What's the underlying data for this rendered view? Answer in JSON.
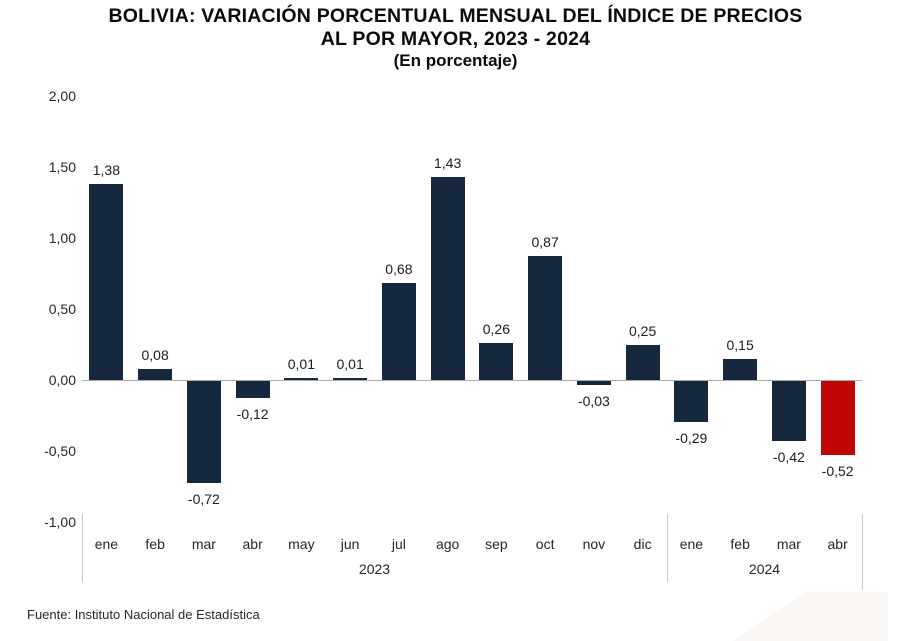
{
  "title": {
    "line1": "BOLIVIA: VARIACIÓN PORCENTUAL MENSUAL DEL ÍNDICE DE PRECIOS",
    "line2": "AL POR MAYOR, 2023 - 2024",
    "line3": "(En porcentaje)"
  },
  "chart_data": {
    "type": "bar",
    "title": "BOLIVIA: VARIACIÓN PORCENTUAL MENSUAL DEL ÍNDICE DE PRECIOS AL POR MAYOR, 2023 - 2024 (En porcentaje)",
    "xlabel": "",
    "ylabel": "",
    "categories": [
      "ene",
      "feb",
      "mar",
      "abr",
      "may",
      "jun",
      "jul",
      "ago",
      "sep",
      "oct",
      "nov",
      "dic",
      "ene",
      "feb",
      "mar",
      "abr"
    ],
    "values": [
      1.38,
      0.08,
      -0.72,
      -0.12,
      0.01,
      0.01,
      0.68,
      1.43,
      0.26,
      0.87,
      -0.03,
      0.25,
      -0.29,
      0.15,
      -0.42,
      -0.52
    ],
    "value_labels": [
      "1,38",
      "0,08",
      "-0,72",
      "-0,12",
      "0,01",
      "0,01",
      "0,68",
      "1,43",
      "0,26",
      "0,87",
      "-0,03",
      "0,25",
      "-0,29",
      "0,15",
      "-0,42",
      "-0,52"
    ],
    "year_groups": [
      {
        "label": "2023",
        "start_index": 0,
        "end_index": 11
      },
      {
        "label": "2024",
        "start_index": 12,
        "end_index": 15
      }
    ],
    "y_ticks": [
      {
        "label": "2,00",
        "value": 2.0
      },
      {
        "label": "1,50",
        "value": 1.5
      },
      {
        "label": "1,00",
        "value": 1.0
      },
      {
        "label": "0,50",
        "value": 0.5
      },
      {
        "label": "0,00",
        "value": 0.0
      },
      {
        "label": "-0,50",
        "value": -0.5
      },
      {
        "label": "-1,00",
        "value": -1.0
      }
    ],
    "ylim": [
      -1.0,
      2.0
    ],
    "grid": false,
    "legend": null,
    "bar_color": "#16283E",
    "highlight_color": "#C00505",
    "highlight_index": 15,
    "axis_line_color": "#ABABAB",
    "decoration_color": "#FAF6F4"
  },
  "footer": {
    "source": "Fuente: Instituto Nacional de Estadística"
  }
}
